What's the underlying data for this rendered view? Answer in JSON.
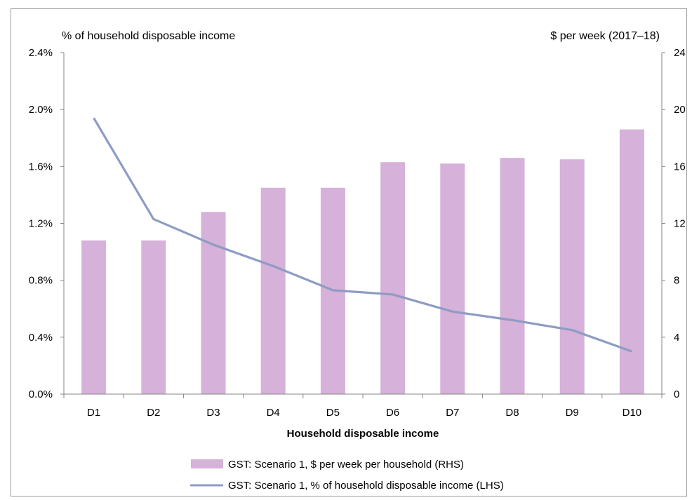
{
  "chart_data": {
    "type": "bar",
    "categories": [
      "D1",
      "D2",
      "D3",
      "D4",
      "D5",
      "D6",
      "D7",
      "D8",
      "D9",
      "D10"
    ],
    "left_axis_title": "% of household disposable income",
    "right_axis_title": "$ per week (2017–18)",
    "xlabel": "Household disposable income",
    "left_ylim": [
      0,
      2.4
    ],
    "left_ticks": [
      "0.0%",
      "0.4%",
      "0.8%",
      "1.2%",
      "1.6%",
      "2.0%",
      "2.4%"
    ],
    "right_ylim": [
      0,
      24
    ],
    "right_ticks": [
      "0",
      "4",
      "8",
      "12",
      "16",
      "20",
      "24"
    ],
    "grid": false,
    "legend_position": "bottom",
    "series": [
      {
        "name": "GST: Scenario 1, $ per week per household (RHS)",
        "type": "bar",
        "axis": "right",
        "color": "#d6b1d9",
        "values": [
          10.8,
          10.8,
          12.8,
          14.5,
          14.5,
          16.3,
          16.2,
          16.6,
          16.5,
          18.6
        ]
      },
      {
        "name": "GST: Scenario 1, % of household disposable income (LHS)",
        "type": "line",
        "axis": "left",
        "color": "#8e9cc4",
        "values": [
          1.94,
          1.23,
          1.05,
          0.9,
          0.73,
          0.7,
          0.58,
          0.52,
          0.45,
          0.3
        ]
      }
    ]
  }
}
